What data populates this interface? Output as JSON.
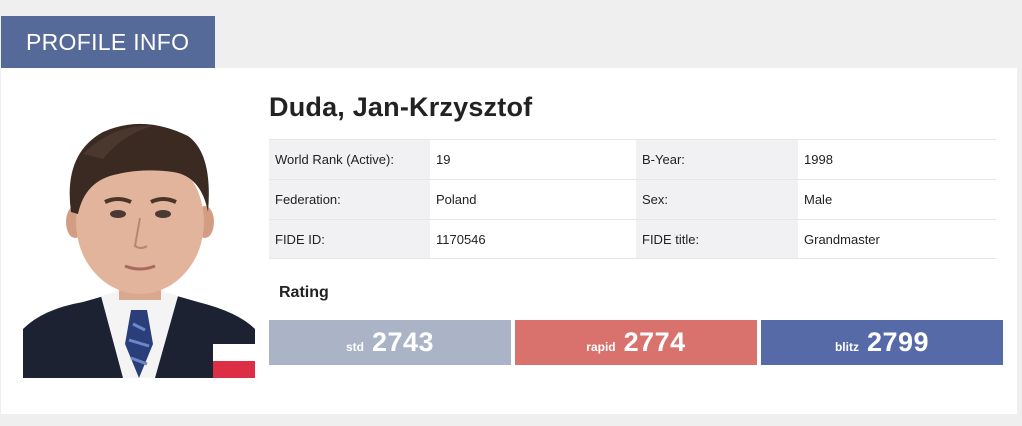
{
  "tab": {
    "label": "PROFILE INFO"
  },
  "player": {
    "name": "Duda, Jan-Krzysztof"
  },
  "info": [
    {
      "label1": "World Rank (Active):",
      "value1": "19",
      "label2": "B-Year:",
      "value2": "1998"
    },
    {
      "label1": "Federation:",
      "value1": "Poland",
      "label2": "Sex:",
      "value2": "Male"
    },
    {
      "label1": "FIDE ID:",
      "value1": "1170546",
      "label2": "FIDE title:",
      "value2": "Grandmaster"
    }
  ],
  "rating": {
    "heading": "Rating",
    "items": [
      {
        "label": "std",
        "value": "2743",
        "color": "#aab4c6"
      },
      {
        "label": "rapid",
        "value": "2774",
        "color": "#d9716c"
      },
      {
        "label": "blitz",
        "value": "2799",
        "color": "#566aa8"
      }
    ]
  }
}
